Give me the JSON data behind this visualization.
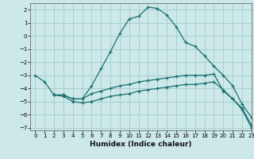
{
  "xlabel": "Humidex (Indice chaleur)",
  "background_color": "#cce8e8",
  "grid_color": "#aacfcf",
  "line_color": "#1a7070",
  "xlim": [
    -0.5,
    23
  ],
  "ylim": [
    -7.2,
    2.5
  ],
  "xticks": [
    0,
    1,
    2,
    3,
    4,
    5,
    6,
    7,
    8,
    9,
    10,
    11,
    12,
    13,
    14,
    15,
    16,
    17,
    18,
    19,
    20,
    21,
    22,
    23
  ],
  "yticks": [
    -7,
    -6,
    -5,
    -4,
    -3,
    -2,
    -1,
    0,
    1,
    2
  ],
  "curve1_x": [
    0,
    1,
    2,
    3,
    4,
    5,
    6,
    7,
    8,
    9,
    10,
    11,
    12,
    13,
    14,
    15,
    16,
    17,
    18,
    19,
    20,
    21,
    22,
    23
  ],
  "curve1_y": [
    -3.0,
    -3.5,
    -4.5,
    -4.5,
    -4.8,
    -4.8,
    -3.8,
    -2.5,
    -1.2,
    0.2,
    1.3,
    1.5,
    2.2,
    2.1,
    1.6,
    0.7,
    -0.5,
    -0.8,
    -1.5,
    -2.3,
    -3.0,
    -3.8,
    -5.2,
    -6.2
  ],
  "curve2_x": [
    2,
    3,
    4,
    5,
    6,
    7,
    8,
    9,
    10,
    11,
    12,
    13,
    14,
    15,
    16,
    17,
    18,
    19,
    20,
    21,
    22,
    23
  ],
  "curve2_y": [
    -4.5,
    -4.5,
    -4.8,
    -4.8,
    -4.4,
    -4.2,
    -4.0,
    -3.8,
    -3.7,
    -3.5,
    -3.4,
    -3.3,
    -3.2,
    -3.1,
    -3.0,
    -3.0,
    -3.0,
    -2.9,
    -4.2,
    -4.8,
    -5.5,
    -6.8
  ],
  "curve3_x": [
    2,
    3,
    4,
    5,
    6,
    7,
    8,
    9,
    10,
    11,
    12,
    13,
    14,
    15,
    16,
    17,
    18,
    19,
    20,
    21,
    22,
    23
  ],
  "curve3_y": [
    -4.5,
    -4.6,
    -5.0,
    -5.1,
    -5.0,
    -4.8,
    -4.6,
    -4.5,
    -4.4,
    -4.2,
    -4.1,
    -4.0,
    -3.9,
    -3.8,
    -3.7,
    -3.7,
    -3.6,
    -3.5,
    -4.1,
    -4.8,
    -5.6,
    -7.0
  ]
}
